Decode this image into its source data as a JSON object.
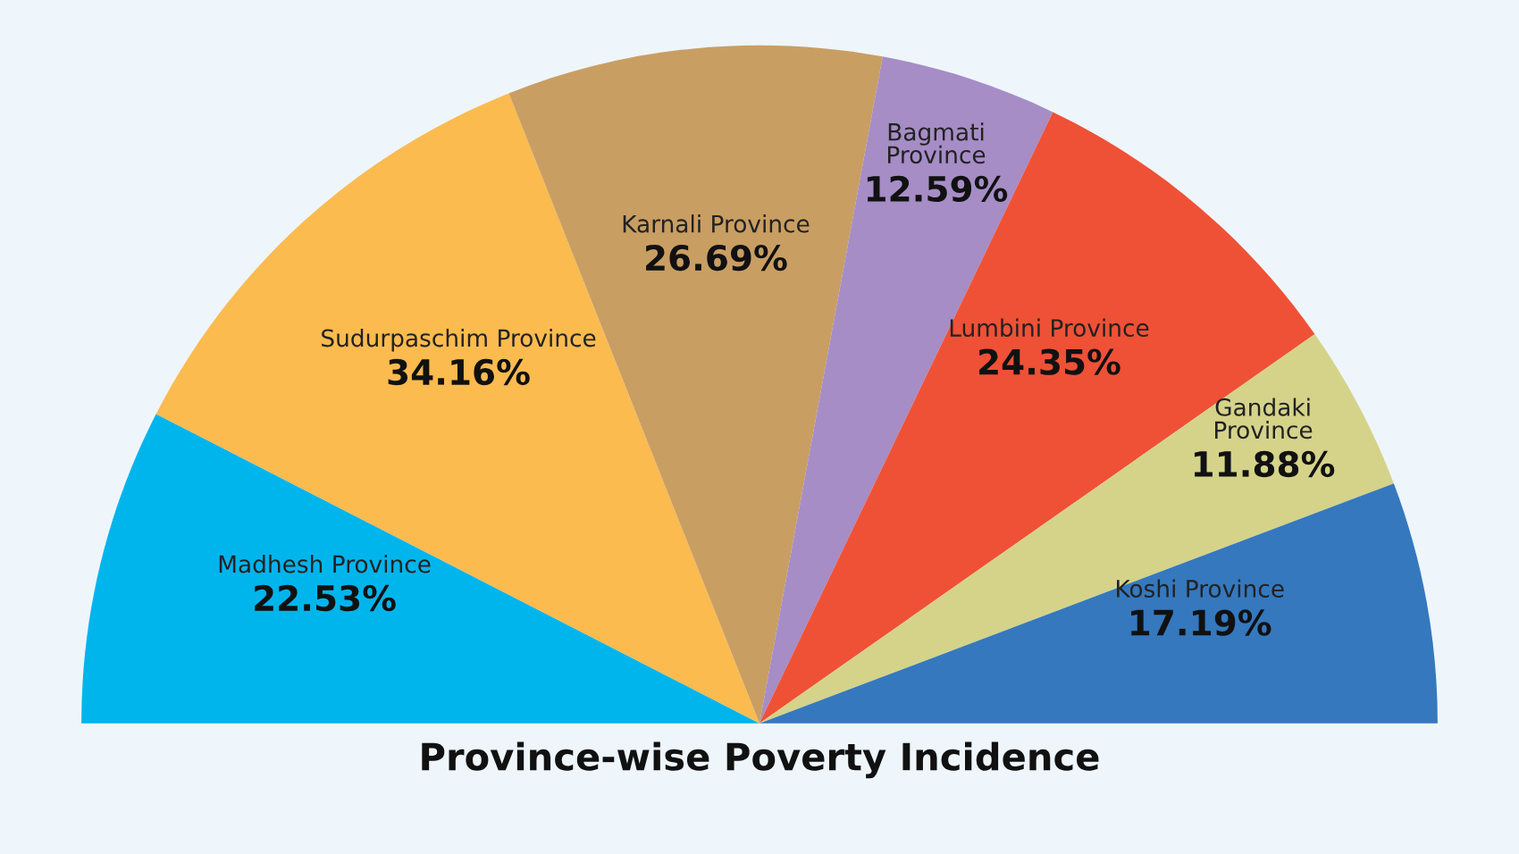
{
  "chart_data": {
    "type": "pie",
    "title": "Province-wise Poverty Incidence",
    "categories": [
      "Madhesh Province",
      "Sudurpaschim Province",
      "Karnali Province",
      "Bagmati Province",
      "Lumbini Province",
      "Gandaki Province",
      "Koshi Province"
    ],
    "values": [
      22.53,
      34.16,
      26.69,
      12.59,
      24.35,
      11.88,
      17.19
    ],
    "value_labels": [
      "22.53%",
      "34.16%",
      "26.69%",
      "12.59%",
      "24.35%",
      "11.88%",
      "17.19%"
    ],
    "colors": [
      "#00b5ec",
      "#fbbb4f",
      "#c99e63",
      "#a68dc6",
      "#ef5136",
      "#d5d38a",
      "#3578be"
    ]
  }
}
